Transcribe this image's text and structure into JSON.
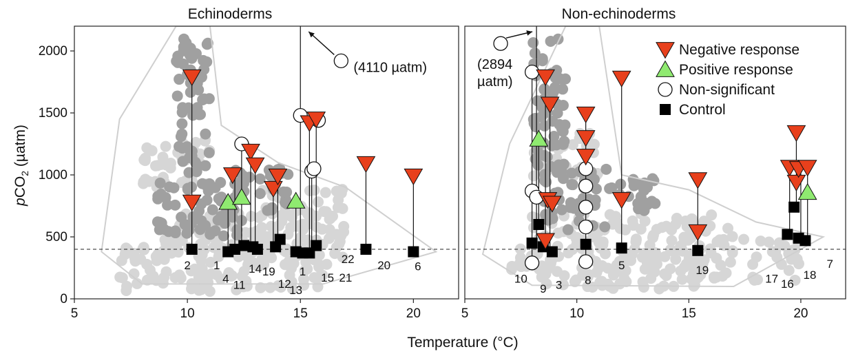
{
  "chart_data": {
    "type": "scatter",
    "xlabel": "Temperature (°C)",
    "ylabel_italic": "p",
    "ylabel_main": "CO",
    "ylabel_sub": "2",
    "ylabel_unit": " (µatm)",
    "ylim": [
      0,
      2200
    ],
    "yticks": [
      "0",
      "500",
      "1000",
      "1500",
      "2000"
    ],
    "xticks": [
      "5",
      "10",
      "15",
      "20"
    ],
    "reference_line_y": 400,
    "colors": {
      "negative": "#e8401c",
      "positive": "#8fea70",
      "control": "#000000",
      "light_cloud": "#d6d6d6",
      "dark_cloud": "#a0a0a0",
      "envelope": "#cfcfcf"
    },
    "legend": {
      "placement": "top-right of right panel",
      "items": [
        {
          "name": "Negative response",
          "marker": "triangle-down"
        },
        {
          "name": "Positive response",
          "marker": "triangle-up"
        },
        {
          "name": "Non-significant",
          "marker": "circle"
        },
        {
          "name": "Control",
          "marker": "square"
        }
      ]
    },
    "panels": [
      {
        "title": "Echinoderms",
        "xlim": [
          5,
          22
        ],
        "annotation": {
          "text": "(4110 µatm)",
          "x": 16.8,
          "y": 1920
        },
        "off_scale_line": {
          "x": 15.0,
          "y_from": 380,
          "y_to": 2200
        },
        "negative": [
          {
            "x": 10.2,
            "y": 1790
          },
          {
            "x": 10.2,
            "y": 780
          },
          {
            "x": 12.0,
            "y": 1000
          },
          {
            "x": 12.8,
            "y": 1190
          },
          {
            "x": 13.0,
            "y": 1080
          },
          {
            "x": 13.8,
            "y": 890
          },
          {
            "x": 14.0,
            "y": 990
          },
          {
            "x": 15.4,
            "y": 1420
          },
          {
            "x": 15.7,
            "y": 1450
          },
          {
            "x": 17.9,
            "y": 1090
          },
          {
            "x": 20.0,
            "y": 990
          }
        ],
        "positive": [
          {
            "x": 11.8,
            "y": 780
          },
          {
            "x": 12.4,
            "y": 820
          },
          {
            "x": 14.8,
            "y": 790
          }
        ],
        "nonsig": [
          {
            "x": 16.8,
            "y": 1920
          },
          {
            "x": 12.4,
            "y": 1250
          },
          {
            "x": 15.0,
            "y": 1480
          },
          {
            "x": 15.8,
            "y": 1440
          },
          {
            "x": 15.5,
            "y": 1030
          },
          {
            "x": 15.6,
            "y": 1050
          }
        ],
        "control": [
          {
            "x": 10.2,
            "y": 400
          },
          {
            "x": 11.8,
            "y": 380
          },
          {
            "x": 12.1,
            "y": 400
          },
          {
            "x": 12.5,
            "y": 430
          },
          {
            "x": 12.9,
            "y": 420
          },
          {
            "x": 13.1,
            "y": 400
          },
          {
            "x": 13.9,
            "y": 420
          },
          {
            "x": 14.1,
            "y": 480
          },
          {
            "x": 14.8,
            "y": 380
          },
          {
            "x": 15.1,
            "y": 370
          },
          {
            "x": 15.4,
            "y": 370
          },
          {
            "x": 15.7,
            "y": 430
          },
          {
            "x": 17.9,
            "y": 400
          },
          {
            "x": 20.0,
            "y": 380
          }
        ],
        "links": [
          {
            "x": 10.2,
            "y1": 400,
            "y2": 1790
          },
          {
            "x": 11.8,
            "y1": 380,
            "y2": 780
          },
          {
            "x": 12.1,
            "y1": 400,
            "y2": 1000
          },
          {
            "x": 12.4,
            "y1": 430,
            "y2": 1250
          },
          {
            "x": 12.8,
            "y1": 420,
            "y2": 1190
          },
          {
            "x": 13.0,
            "y1": 400,
            "y2": 1080
          },
          {
            "x": 13.8,
            "y1": 420,
            "y2": 890
          },
          {
            "x": 14.0,
            "y1": 480,
            "y2": 990
          },
          {
            "x": 14.8,
            "y1": 380,
            "y2": 790
          },
          {
            "x": 15.4,
            "y1": 370,
            "y2": 1420
          },
          {
            "x": 15.5,
            "y1": 370,
            "y2": 1030
          },
          {
            "x": 15.7,
            "y1": 430,
            "y2": 1450
          },
          {
            "x": 17.9,
            "y1": 400,
            "y2": 1090
          },
          {
            "x": 20.0,
            "y1": 380,
            "y2": 990
          }
        ],
        "point_labels": [
          {
            "text": "2",
            "x": 10.0,
            "y": 240
          },
          {
            "text": "1",
            "x": 11.3,
            "y": 240
          },
          {
            "text": "4",
            "x": 11.7,
            "y": 130
          },
          {
            "text": "11",
            "x": 12.3,
            "y": 80
          },
          {
            "text": "14",
            "x": 13.0,
            "y": 210
          },
          {
            "text": "19",
            "x": 13.6,
            "y": 190
          },
          {
            "text": "12",
            "x": 14.3,
            "y": 90
          },
          {
            "text": "1",
            "x": 15.1,
            "y": 190
          },
          {
            "text": "13",
            "x": 14.8,
            "y": 40
          },
          {
            "text": "15",
            "x": 16.2,
            "y": 140
          },
          {
            "text": "21",
            "x": 17.0,
            "y": 140
          },
          {
            "text": "22",
            "x": 17.1,
            "y": 290
          },
          {
            "text": "20",
            "x": 18.7,
            "y": 240
          },
          {
            "text": "6",
            "x": 20.2,
            "y": 230
          }
        ]
      },
      {
        "title": "Non-echinoderms",
        "xlim": [
          5,
          22
        ],
        "annotation": {
          "text": "(2894\nµatm)",
          "x": 6.6,
          "y": 2060
        },
        "off_scale_line": {
          "x": 8.2,
          "y_from": 450,
          "y_to": 2200
        },
        "negative": [
          {
            "x": 8.6,
            "y": 1790
          },
          {
            "x": 8.8,
            "y": 1570
          },
          {
            "x": 8.7,
            "y": 800
          },
          {
            "x": 8.6,
            "y": 470
          },
          {
            "x": 8.9,
            "y": 770
          },
          {
            "x": 10.4,
            "y": 1490
          },
          {
            "x": 10.4,
            "y": 1300
          },
          {
            "x": 10.4,
            "y": 1150
          },
          {
            "x": 12.0,
            "y": 1780
          },
          {
            "x": 12.0,
            "y": 800
          },
          {
            "x": 15.4,
            "y": 960
          },
          {
            "x": 15.4,
            "y": 540
          },
          {
            "x": 19.8,
            "y": 1340
          },
          {
            "x": 19.5,
            "y": 1060
          },
          {
            "x": 19.8,
            "y": 940
          },
          {
            "x": 19.9,
            "y": 1050
          },
          {
            "x": 20.3,
            "y": 1060
          }
        ],
        "positive": [
          {
            "x": 8.3,
            "y": 1290
          },
          {
            "x": 20.3,
            "y": 860
          }
        ],
        "nonsig": [
          {
            "x": 6.6,
            "y": 2060
          },
          {
            "x": 8.0,
            "y": 1830
          },
          {
            "x": 8.0,
            "y": 870
          },
          {
            "x": 8.2,
            "y": 820
          },
          {
            "x": 8.0,
            "y": 290
          },
          {
            "x": 10.4,
            "y": 1050
          },
          {
            "x": 10.4,
            "y": 910
          },
          {
            "x": 10.4,
            "y": 740
          },
          {
            "x": 10.4,
            "y": 580
          },
          {
            "x": 10.4,
            "y": 300
          }
        ],
        "control": [
          {
            "x": 8.0,
            "y": 450
          },
          {
            "x": 8.3,
            "y": 600
          },
          {
            "x": 8.5,
            "y": 420
          },
          {
            "x": 8.9,
            "y": 380
          },
          {
            "x": 10.4,
            "y": 440
          },
          {
            "x": 12.0,
            "y": 410
          },
          {
            "x": 15.4,
            "y": 390
          },
          {
            "x": 19.4,
            "y": 520
          },
          {
            "x": 19.7,
            "y": 740
          },
          {
            "x": 19.9,
            "y": 490
          },
          {
            "x": 20.2,
            "y": 470
          }
        ],
        "links": [
          {
            "x": 8.0,
            "y1": 290,
            "y2": 1830
          },
          {
            "x": 8.3,
            "y1": 600,
            "y2": 1290
          },
          {
            "x": 8.6,
            "y1": 420,
            "y2": 1790
          },
          {
            "x": 8.8,
            "y1": 380,
            "y2": 1570
          },
          {
            "x": 10.4,
            "y1": 300,
            "y2": 1490
          },
          {
            "x": 12.0,
            "y1": 410,
            "y2": 1780
          },
          {
            "x": 15.4,
            "y1": 390,
            "y2": 960
          },
          {
            "x": 19.8,
            "y1": 740,
            "y2": 1340
          },
          {
            "x": 19.5,
            "y1": 520,
            "y2": 1060
          },
          {
            "x": 20.0,
            "y1": 490,
            "y2": 1050
          },
          {
            "x": 20.3,
            "y1": 470,
            "y2": 1060
          }
        ],
        "point_labels": [
          {
            "text": "10",
            "x": 7.5,
            "y": 130
          },
          {
            "text": "9",
            "x": 8.5,
            "y": 50
          },
          {
            "text": "3",
            "x": 9.2,
            "y": 80
          },
          {
            "text": "8",
            "x": 10.5,
            "y": 120
          },
          {
            "text": "5",
            "x": 12.0,
            "y": 240
          },
          {
            "text": "19",
            "x": 15.6,
            "y": 200
          },
          {
            "text": "17",
            "x": 18.7,
            "y": 130
          },
          {
            "text": "16",
            "x": 19.4,
            "y": 90
          },
          {
            "text": "18",
            "x": 20.4,
            "y": 160
          },
          {
            "text": "7",
            "x": 21.3,
            "y": 250
          }
        ]
      }
    ]
  }
}
